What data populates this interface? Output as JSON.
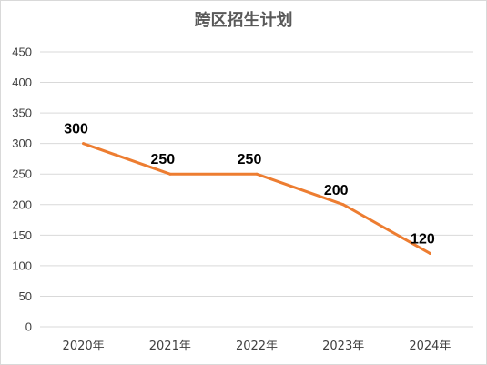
{
  "chart_data": {
    "type": "line",
    "title": "跨区招生计划",
    "categories": [
      "2020年",
      "2021年",
      "2022年",
      "2023年",
      "2024年"
    ],
    "series": [
      {
        "values": [
          300,
          250,
          250,
          200,
          120
        ],
        "color": "#ED7D31"
      }
    ],
    "ylim": [
      0,
      450
    ],
    "yticks": [
      0,
      50,
      100,
      150,
      200,
      250,
      300,
      350,
      400,
      450
    ],
    "grid": true,
    "data_labels": true,
    "legend": "none"
  }
}
